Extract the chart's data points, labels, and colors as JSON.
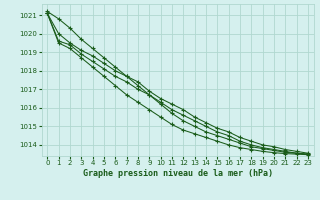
{
  "title": "Graphe pression niveau de la mer (hPa)",
  "bg_color": "#d5f0ee",
  "line_color": "#1a5c1a",
  "grid_color": "#b0d8d0",
  "text_color": "#1a5c1a",
  "xlim": [
    -0.5,
    23.5
  ],
  "ylim": [
    1013.4,
    1021.6
  ],
  "yticks": [
    1014,
    1015,
    1016,
    1017,
    1018,
    1019,
    1020,
    1021
  ],
  "xticks": [
    0,
    1,
    2,
    3,
    4,
    5,
    6,
    7,
    8,
    9,
    10,
    11,
    12,
    13,
    14,
    15,
    16,
    17,
    18,
    19,
    20,
    21,
    22,
    23
  ],
  "series": [
    [
      1021.2,
      1020.8,
      1020.3,
      1019.7,
      1019.2,
      1018.7,
      1018.2,
      1017.7,
      1017.2,
      1016.7,
      1016.2,
      1015.7,
      1015.3,
      1015.0,
      1014.7,
      1014.5,
      1014.3,
      1014.1,
      1013.9,
      1013.8,
      1013.7,
      1013.6,
      1013.55,
      1013.5
    ],
    [
      1021.1,
      1020.0,
      1019.5,
      1019.1,
      1018.8,
      1018.4,
      1018.0,
      1017.7,
      1017.4,
      1016.9,
      1016.5,
      1016.2,
      1015.9,
      1015.5,
      1015.2,
      1014.9,
      1014.7,
      1014.4,
      1014.2,
      1014.0,
      1013.9,
      1013.75,
      1013.65,
      1013.55
    ],
    [
      1021.1,
      1019.6,
      1019.4,
      1018.9,
      1018.5,
      1018.1,
      1017.7,
      1017.4,
      1017.0,
      1016.7,
      1016.3,
      1015.9,
      1015.6,
      1015.3,
      1015.0,
      1014.7,
      1014.5,
      1014.2,
      1014.0,
      1013.85,
      1013.75,
      1013.65,
      1013.55,
      1013.5
    ],
    [
      1021.1,
      1019.5,
      1019.2,
      1018.7,
      1018.2,
      1017.7,
      1017.2,
      1016.7,
      1016.3,
      1015.9,
      1015.5,
      1015.1,
      1014.8,
      1014.6,
      1014.4,
      1014.2,
      1014.0,
      1013.85,
      1013.75,
      1013.65,
      1013.58,
      1013.53,
      1013.5,
      1013.47
    ]
  ],
  "figsize": [
    3.2,
    2.0
  ],
  "dpi": 100
}
